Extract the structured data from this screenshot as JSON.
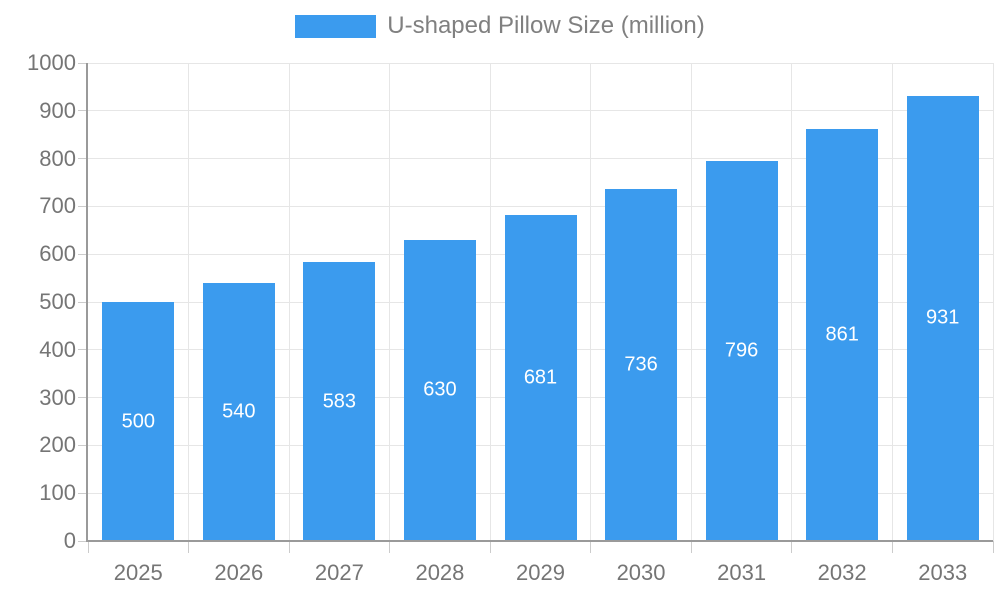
{
  "chart_data": {
    "type": "bar",
    "title": "",
    "xlabel": "",
    "ylabel": "",
    "series_name": "U-shaped Pillow Size (million)",
    "categories": [
      "2025",
      "2026",
      "2027",
      "2028",
      "2029",
      "2030",
      "2031",
      "2032",
      "2033"
    ],
    "values": [
      500,
      540,
      583,
      630,
      681,
      736,
      796,
      861,
      931
    ],
    "ylim": [
      0,
      1000
    ],
    "ytick_step": 100,
    "ytick_labels": [
      "0",
      "100",
      "200",
      "300",
      "400",
      "500",
      "600",
      "700",
      "800",
      "900",
      "1000"
    ],
    "grid": true,
    "legend_position": "top",
    "bar_labels_inside": true,
    "colors": {
      "bar": "#3b9bee",
      "bar_label": "#ffffff",
      "axis_text": "#757575",
      "legend_text": "#808080",
      "gridline": "#e6e6e6",
      "axis_line": "#9a9a9a",
      "tick": "#cccccc",
      "background": "#ffffff"
    }
  }
}
